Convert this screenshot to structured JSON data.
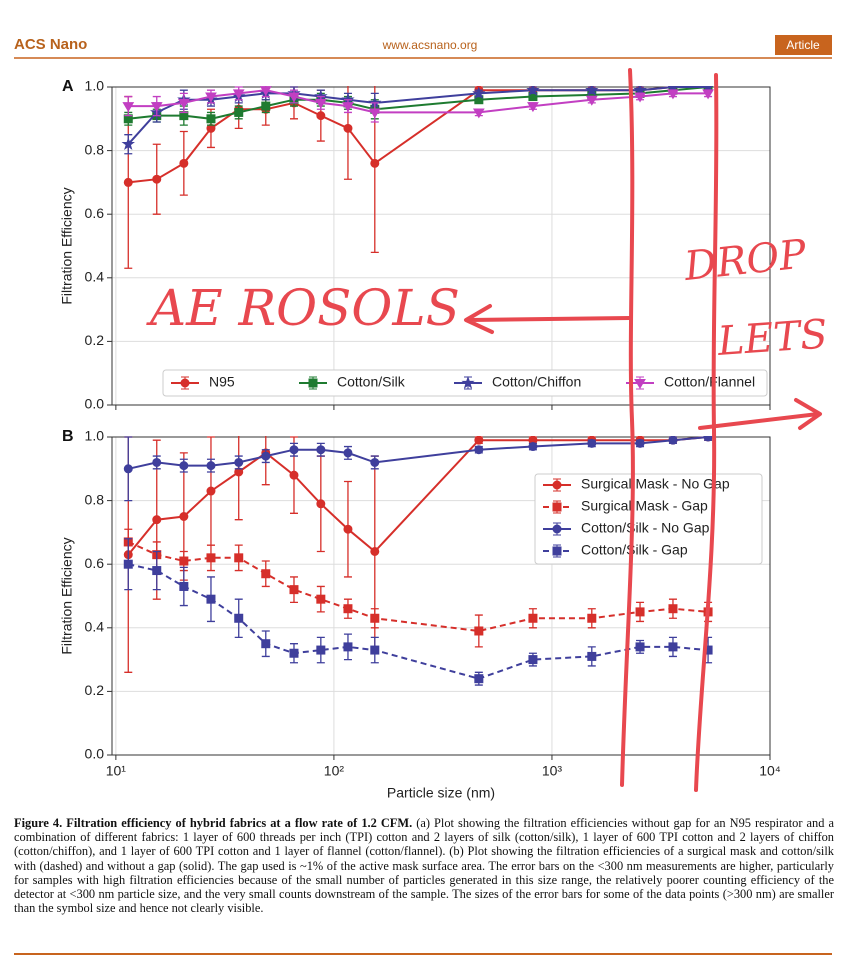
{
  "header": {
    "journal": "ACS Nano",
    "url": "www.acsnano.org",
    "section": "Article"
  },
  "chart_data": [
    {
      "type": "line",
      "panel": "A",
      "ylabel": "Filtration Efficiency",
      "xscale": "log",
      "grid": true,
      "legend": "lower center",
      "x": [
        11.4,
        15.4,
        20.5,
        27.3,
        36.6,
        48.7,
        65.6,
        87.1,
        116,
        154,
        462,
        818,
        1523,
        2535,
        3589,
        5200
      ],
      "xlim": [
        9.6,
        10000
      ],
      "xticks": [
        10,
        100,
        1000,
        10000
      ],
      "ylim": [
        0,
        1.0
      ],
      "yticks": [
        {
          "value": 0,
          "label": "0.0"
        },
        0.2,
        0.4,
        0.6,
        0.8,
        {
          "value": 1.0,
          "label": "1.0"
        }
      ],
      "series": [
        {
          "name": "N95",
          "color": "#d62f2a",
          "marker": "circle",
          "linestyle": "solid",
          "values": [
            0.7,
            0.71,
            0.76,
            0.87,
            0.93,
            0.93,
            0.95,
            0.91,
            0.87,
            0.76,
            0.99,
            0.99,
            0.99,
            0.99,
            1.0,
            1.0
          ],
          "errors": [
            0.27,
            0.11,
            0.1,
            0.06,
            0.06,
            0.05,
            0.05,
            0.08,
            0.16,
            0.28,
            0.01,
            0.01,
            0.01,
            0.01,
            0.01,
            0.01
          ]
        },
        {
          "name": "Cotton/Silk",
          "color": "#1e7b30",
          "marker": "square",
          "linestyle": "solid",
          "values": [
            0.9,
            0.91,
            0.91,
            0.9,
            0.92,
            0.94,
            0.96,
            0.96,
            0.95,
            0.93,
            0.96,
            0.97,
            0.975,
            0.98,
            0.99,
            1.0
          ],
          "errors": [
            0.02,
            0.02,
            0.03,
            0.02,
            0.02,
            0.02,
            0.02,
            0.02,
            0.02,
            0.03,
            0.01,
            0.01,
            0.01,
            0.01,
            0.01,
            0.01
          ]
        },
        {
          "name": "Cotton/Chiffon",
          "color": "#3f3f9c",
          "marker": "star",
          "linestyle": "solid",
          "values": [
            0.82,
            0.92,
            0.96,
            0.96,
            0.97,
            0.98,
            0.98,
            0.97,
            0.96,
            0.95,
            0.98,
            0.99,
            0.99,
            0.99,
            1.0,
            1.0
          ],
          "errors": [
            0.03,
            0.03,
            0.03,
            0.02,
            0.02,
            0.02,
            0.02,
            0.02,
            0.02,
            0.03,
            0.01,
            0.01,
            0.01,
            0.01,
            0.01,
            0.01
          ]
        },
        {
          "name": "Cotton/Flannel",
          "color": "#c23fc2",
          "marker": "triangle-down",
          "linestyle": "solid",
          "values": [
            0.94,
            0.94,
            0.95,
            0.97,
            0.98,
            0.99,
            0.97,
            0.95,
            0.94,
            0.92,
            0.92,
            0.94,
            0.96,
            0.97,
            0.98,
            0.98
          ],
          "errors": [
            0.03,
            0.03,
            0.03,
            0.02,
            0.02,
            0.02,
            0.02,
            0.02,
            0.02,
            0.03,
            0.01,
            0.01,
            0.01,
            0.01,
            0.01,
            0.01
          ]
        }
      ]
    },
    {
      "type": "line",
      "panel": "B",
      "ylabel": "Filtration Efficiency",
      "xlabel": "Particle size (nm)",
      "xscale": "log",
      "grid": true,
      "legend": "center right",
      "x": [
        11.4,
        15.4,
        20.5,
        27.3,
        36.6,
        48.7,
        65.6,
        87.1,
        116,
        154,
        462,
        818,
        1523,
        2535,
        3589,
        5200
      ],
      "xlim": [
        9.6,
        10000
      ],
      "xticks": [
        {
          "value": 10,
          "label": "10¹"
        },
        {
          "value": 100,
          "label": "10²"
        },
        {
          "value": 1000,
          "label": "10³"
        },
        {
          "value": 10000,
          "label": "10⁴"
        }
      ],
      "ylim": [
        0,
        1.0
      ],
      "yticks": [
        {
          "value": 0,
          "label": "0.0"
        },
        0.2,
        0.4,
        0.6,
        0.8,
        {
          "value": 1.0,
          "label": "1.0"
        }
      ],
      "series": [
        {
          "name": "Surgical Mask - No Gap",
          "color": "#d62f2a",
          "marker": "circle",
          "linestyle": "solid",
          "values": [
            0.63,
            0.74,
            0.75,
            0.83,
            0.89,
            0.95,
            0.88,
            0.79,
            0.71,
            0.64,
            0.99,
            0.99,
            0.99,
            0.99,
            0.99,
            1.0
          ],
          "errors": [
            0.37,
            0.25,
            0.2,
            0.17,
            0.15,
            0.1,
            0.12,
            0.15,
            0.15,
            0.3,
            0.01,
            0.01,
            0.01,
            0.01,
            0.01,
            0.01
          ]
        },
        {
          "name": "Surgical Mask - Gap",
          "color": "#d62f2a",
          "marker": "square",
          "linestyle": "dashed",
          "values": [
            0.67,
            0.63,
            0.61,
            0.62,
            0.62,
            0.57,
            0.52,
            0.49,
            0.46,
            0.43,
            0.39,
            0.43,
            0.43,
            0.45,
            0.46,
            0.45
          ],
          "errors": [
            0.04,
            0.04,
            0.03,
            0.04,
            0.04,
            0.04,
            0.04,
            0.04,
            0.03,
            0.03,
            0.05,
            0.03,
            0.03,
            0.03,
            0.03,
            0.03
          ]
        },
        {
          "name": "Cotton/Silk - No Gap",
          "color": "#3f3f9c",
          "marker": "circle",
          "linestyle": "solid",
          "values": [
            0.9,
            0.92,
            0.91,
            0.91,
            0.92,
            0.94,
            0.96,
            0.96,
            0.95,
            0.92,
            0.96,
            0.97,
            0.98,
            0.98,
            0.99,
            1.0
          ],
          "errors": [
            0.1,
            0.02,
            0.02,
            0.02,
            0.02,
            0.02,
            0.02,
            0.02,
            0.02,
            0.02,
            0.01,
            0.01,
            0.01,
            0.01,
            0.01,
            0.01
          ]
        },
        {
          "name": "Cotton/Silk - Gap",
          "color": "#3f3f9c",
          "marker": "square",
          "linestyle": "dashed",
          "values": [
            0.6,
            0.58,
            0.53,
            0.49,
            0.43,
            0.35,
            0.32,
            0.33,
            0.34,
            0.33,
            0.24,
            0.3,
            0.31,
            0.34,
            0.34,
            0.33
          ],
          "errors": [
            0.08,
            0.06,
            0.06,
            0.07,
            0.06,
            0.04,
            0.03,
            0.04,
            0.04,
            0.04,
            0.02,
            0.02,
            0.03,
            0.02,
            0.03,
            0.04
          ]
        }
      ]
    }
  ],
  "caption": {
    "label": "Figure 4. Filtration efficiency of hybrid fabrics at a flow rate of 1.2 CFM.",
    "text": "(a) Plot showing the filtration efficiencies without gap for an N95 respirator and a combination of different fabrics: 1 layer of 600 threads per inch (TPI) cotton and 2 layers of silk (cotton/silk), 1 layer of 600 TPI cotton and 2 layers of chiffon (cotton/chiffon), and 1 layer of 600 TPI cotton and 1 layer of flannel (cotton/flannel). (b) Plot showing the filtration efficiencies of a surgical mask and cotton/silk with (dashed) and without a gap (solid). The gap used is ~1% of the active mask surface area. The error bars on the <300 nm measurements are higher, particularly for samples with high filtration efficiencies because of the small number of particles generated in this size range, the relatively poorer counting efficiency of the detector at <300 nm particle size, and the very small counts downstream of the sample. The sizes of the error bars for some of the data points (>300 nm) are smaller than the symbol size and hence not clearly visible."
  },
  "annotations": [
    "AE ROSOLS",
    "DROP",
    "LETS"
  ]
}
